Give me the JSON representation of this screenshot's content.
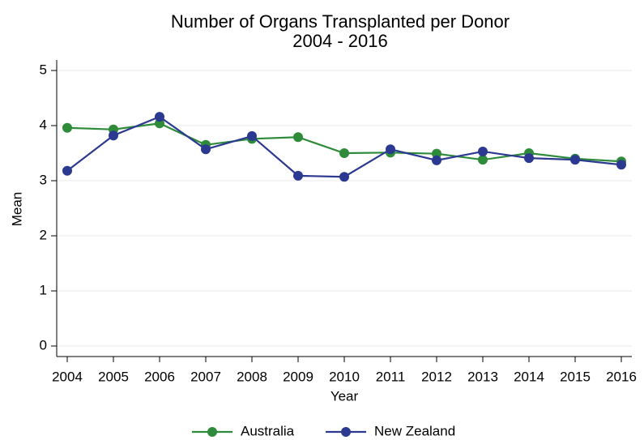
{
  "chart_data": {
    "type": "line",
    "title": "Number of Organs Transplanted per Donor",
    "subtitle": "2004 - 2016",
    "x_label": "Year",
    "y_label": "Mean",
    "x": [
      2004,
      2005,
      2006,
      2007,
      2008,
      2009,
      2010,
      2011,
      2012,
      2013,
      2014,
      2015,
      2016
    ],
    "series": [
      {
        "name": "Australia",
        "color": "#2e8b3a",
        "values": [
          3.96,
          3.93,
          4.04,
          3.65,
          3.76,
          3.79,
          3.5,
          3.51,
          3.49,
          3.38,
          3.5,
          3.4,
          3.35
        ]
      },
      {
        "name": "New Zealand",
        "color": "#2b3990",
        "values": [
          3.18,
          3.82,
          4.16,
          3.57,
          3.81,
          3.09,
          3.07,
          3.57,
          3.37,
          3.53,
          3.41,
          3.38,
          3.29
        ]
      }
    ],
    "xlim": [
      2004,
      2016
    ],
    "xticks": [
      2004,
      2005,
      2006,
      2007,
      2008,
      2009,
      2010,
      2011,
      2012,
      2013,
      2014,
      2015,
      2016
    ],
    "ylim": [
      0,
      5
    ],
    "yticks": [
      0,
      1,
      2,
      3,
      4,
      5
    ],
    "grid": true,
    "legend": "bottom"
  }
}
